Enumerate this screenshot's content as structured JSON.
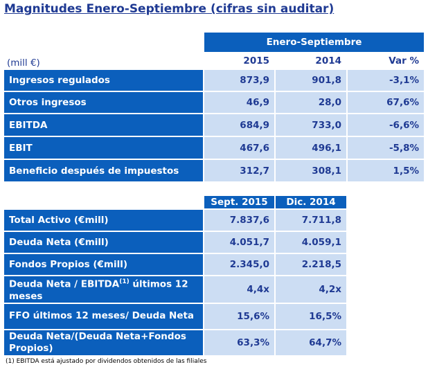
{
  "title": "Magnitudes Enero-Septiembre (cifras sin auditar)",
  "table1": {
    "period_header": "Enero-Septiembre",
    "unit": "(mill €)",
    "columns": [
      "2015",
      "2014",
      "Var %"
    ],
    "rows": [
      {
        "label": "Ingresos regulados",
        "values": [
          "873,9",
          "901,8",
          "-3,1%"
        ]
      },
      {
        "label": "Otros ingresos",
        "values": [
          "46,9",
          "28,0",
          "67,6%"
        ]
      },
      {
        "label": "EBITDA",
        "values": [
          "684,9",
          "733,0",
          "-6,6%"
        ]
      },
      {
        "label": "EBIT",
        "values": [
          "467,6",
          "496,1",
          "-5,8%"
        ]
      },
      {
        "label": "Beneficio después de impuestos",
        "values": [
          "312,7",
          "308,1",
          "1,5%"
        ]
      }
    ]
  },
  "table2": {
    "columns": [
      "Sept. 2015",
      "Dic. 2014"
    ],
    "rows": [
      {
        "label": "Total Activo (€mill)",
        "values": [
          "7.837,6",
          "7.711,8"
        ]
      },
      {
        "label": "Deuda Neta (€mill)",
        "values": [
          "4.051,7",
          "4.059,1"
        ]
      },
      {
        "label": "Fondos Propios (€mill)",
        "values": [
          "2.345,0",
          "2.218,5"
        ]
      },
      {
        "label_pre": "Deuda Neta / EBITDA",
        "label_sup": "(1)",
        "label_post": " últimos 12 meses",
        "values": [
          "4,4x",
          "4,2x"
        ]
      },
      {
        "label": "FFO últimos 12 meses/ Deuda Neta",
        "values": [
          "15,6%",
          "16,5%"
        ]
      },
      {
        "label": "Deuda Neta/(Deuda Neta+Fondos Propios)",
        "values": [
          "63,3%",
          "64,7%"
        ]
      }
    ]
  },
  "footnote": "(1)  EBITDA está ajustado por dividendos obtenidos de las filiales"
}
